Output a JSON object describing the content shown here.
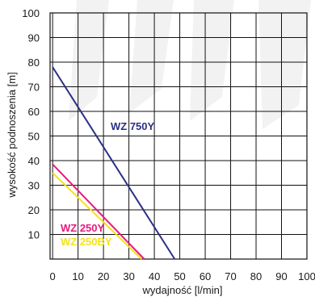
{
  "chart_data": {
    "type": "line",
    "title": "",
    "xlabel": "wydajność [l/min]",
    "ylabel": "wysokość podnoszenia [m]",
    "xlim": [
      -1,
      100
    ],
    "ylim": [
      0,
      100
    ],
    "x_ticks": [
      "0",
      "10",
      "20",
      "30",
      "40",
      "50",
      "60",
      "70",
      "80",
      "90",
      "100"
    ],
    "y_ticks": [
      "10",
      "20",
      "30",
      "40",
      "50",
      "60",
      "70",
      "80",
      "90",
      "100"
    ],
    "grid": true,
    "series": [
      {
        "name": "WZ 750Y",
        "color": "#2b2f86",
        "x": [
          0,
          48
        ],
        "y": [
          78,
          0
        ]
      },
      {
        "name": "WZ 250Y",
        "color": "#e8197d",
        "x": [
          0,
          36
        ],
        "y": [
          38.5,
          0
        ]
      },
      {
        "name": "WZ 250BY",
        "color": "#f5e21a",
        "x": [
          0,
          35
        ],
        "y": [
          35,
          0
        ]
      }
    ]
  }
}
